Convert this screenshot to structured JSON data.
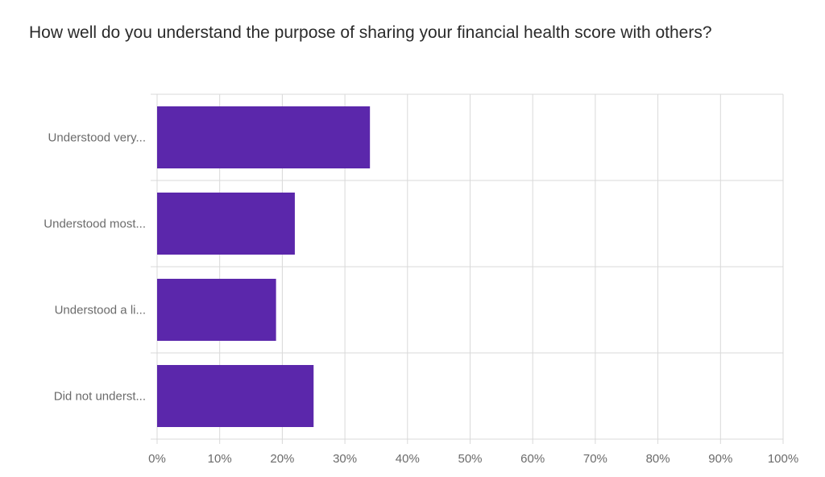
{
  "question": {
    "title": "How well do you understand the purpose of sharing your financial health score with others?"
  },
  "chart_data": {
    "type": "bar",
    "orientation": "horizontal",
    "title": "How well do you understand the purpose of sharing your financial health score with others?",
    "categories": [
      "Understood very...",
      "Understood most...",
      "Understood a li...",
      "Did not underst..."
    ],
    "values": [
      34,
      22,
      19,
      25
    ],
    "unit": "%",
    "xlim": [
      0,
      100
    ],
    "xticks": [
      "0%",
      "10%",
      "20%",
      "30%",
      "40%",
      "50%",
      "60%",
      "70%",
      "80%",
      "90%",
      "100%"
    ],
    "grid": true,
    "bar_color": "#5b27ab",
    "grid_color": "#d9d9d9"
  }
}
